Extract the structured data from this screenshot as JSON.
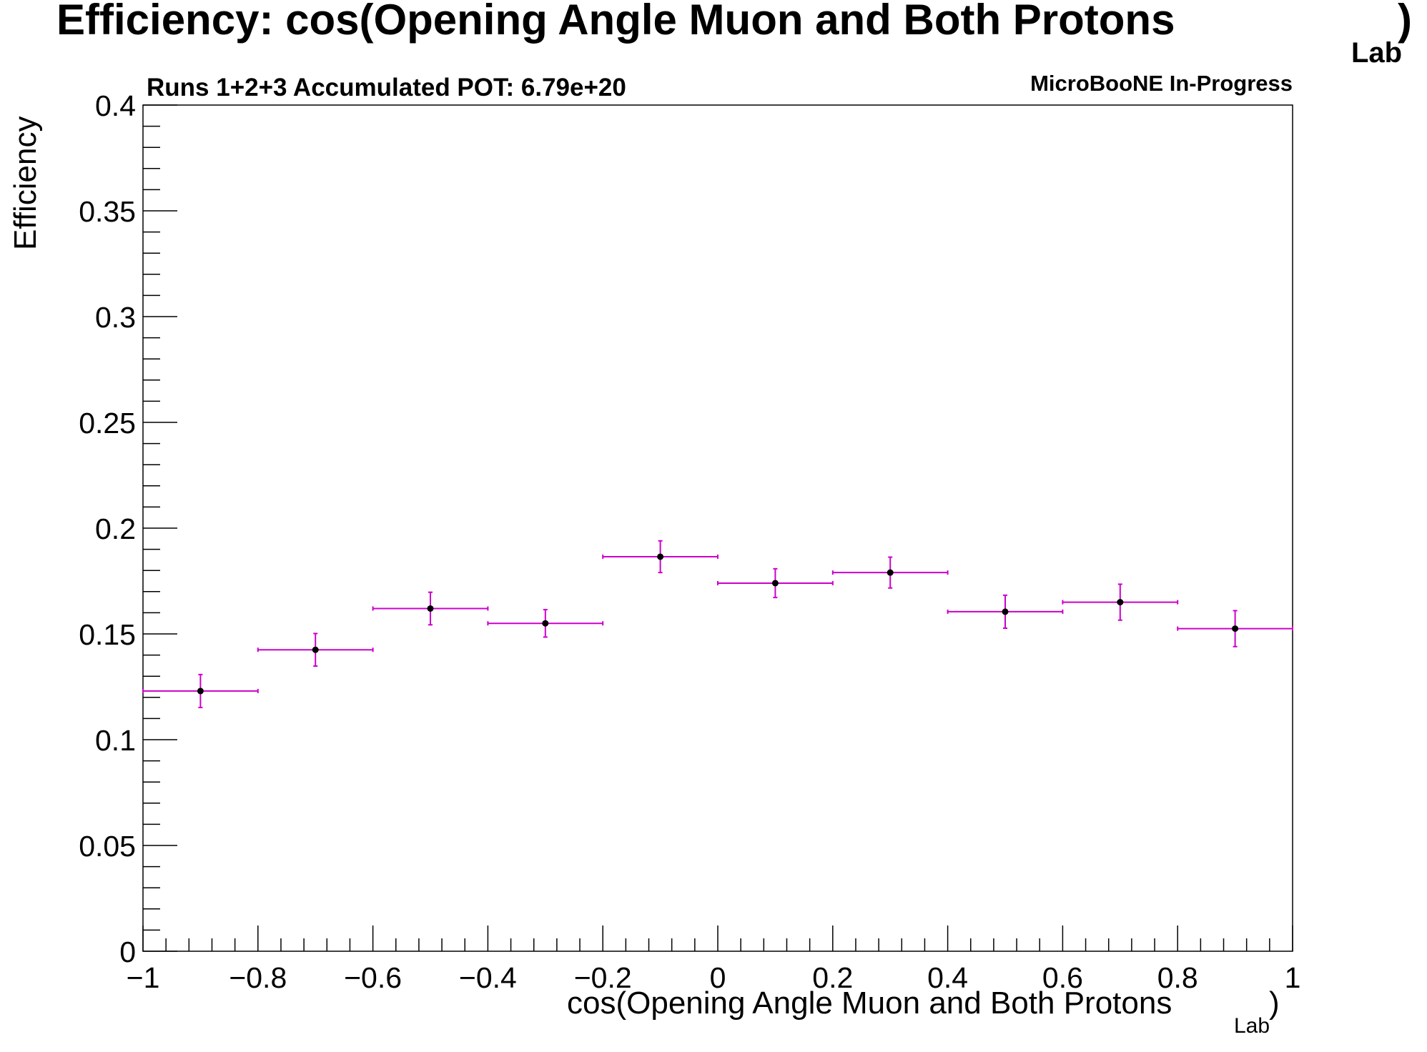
{
  "chart_data": {
    "type": "scatter",
    "title": "Efficiency: cos(Opening Angle Muon and Both Protons",
    "title_subscript": "Lab",
    "title_close": ")",
    "subtitle_left": "Runs 1+2+3 Accumulated POT: 6.79e+20",
    "subtitle_right": "MicroBooNE In-Progress",
    "xlabel": "cos(Opening Angle Muon and Both Protons",
    "xlabel_subscript": "Lab",
    "xlabel_close": ")",
    "ylabel": "Efficiency",
    "xlim": [
      -1,
      1
    ],
    "ylim": [
      0,
      0.4
    ],
    "grid": false,
    "x_tick_labels": [
      "−1",
      "−0.8",
      "−0.6",
      "−0.4",
      "−0.2",
      "0",
      "0.2",
      "0.4",
      "0.6",
      "0.8",
      "1"
    ],
    "y_tick_labels": [
      "0",
      "0.05",
      "0.1",
      "0.15",
      "0.2",
      "0.25",
      "0.3",
      "0.35",
      "0.4"
    ],
    "error_bar_color": "#cc00cc",
    "marker_color": "#000000",
    "series": [
      {
        "bin_low": [
          -1.0,
          -0.8,
          -0.6,
          -0.4,
          -0.2,
          0.0,
          0.2,
          0.4,
          0.6,
          0.8
        ],
        "bin_high": [
          -0.8,
          -0.6,
          -0.4,
          -0.2,
          0.0,
          0.2,
          0.4,
          0.6,
          0.8,
          1.0
        ],
        "x": [
          -0.9,
          -0.7,
          -0.5,
          -0.3,
          -0.1,
          0.1,
          0.3,
          0.5,
          0.7,
          0.9
        ],
        "y": [
          0.123,
          0.1425,
          0.162,
          0.155,
          0.1865,
          0.174,
          0.179,
          0.1605,
          0.165,
          0.1525
        ],
        "yerr": [
          0.0078,
          0.0077,
          0.0077,
          0.0065,
          0.0075,
          0.0068,
          0.0073,
          0.0078,
          0.0085,
          0.0085
        ]
      }
    ]
  }
}
